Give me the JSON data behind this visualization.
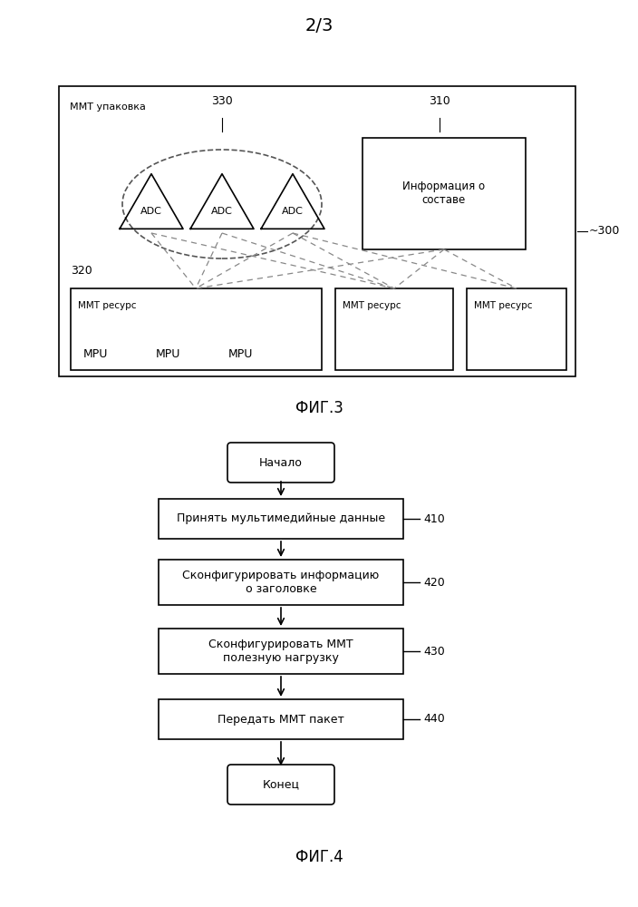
{
  "page_label": "2/3",
  "fig3_label": "ФИГ.3",
  "fig4_label": "ФИГ.4",
  "mmt_package_label": "ММТ упаковка",
  "label_330": "330",
  "label_310": "310",
  "label_320": "320",
  "label_300": "~300",
  "info_box_text": "Информация о\nсоставе",
  "adc_label": "ADC",
  "mmt_resource_label": "ММТ ресурс",
  "mpu_label": "MPU",
  "flowchart_steps": [
    "Начало",
    "Принять мультимедийные данные",
    "Сконфигурировать информацию\nо заголовке",
    "Сконфигурировать ММТ\nполезную нагрузку",
    "Передать ММТ пакет",
    "Конец"
  ],
  "step_labels": [
    "",
    "410",
    "420",
    "430",
    "440",
    ""
  ],
  "bg_color": "#ffffff",
  "text_color": "#000000"
}
